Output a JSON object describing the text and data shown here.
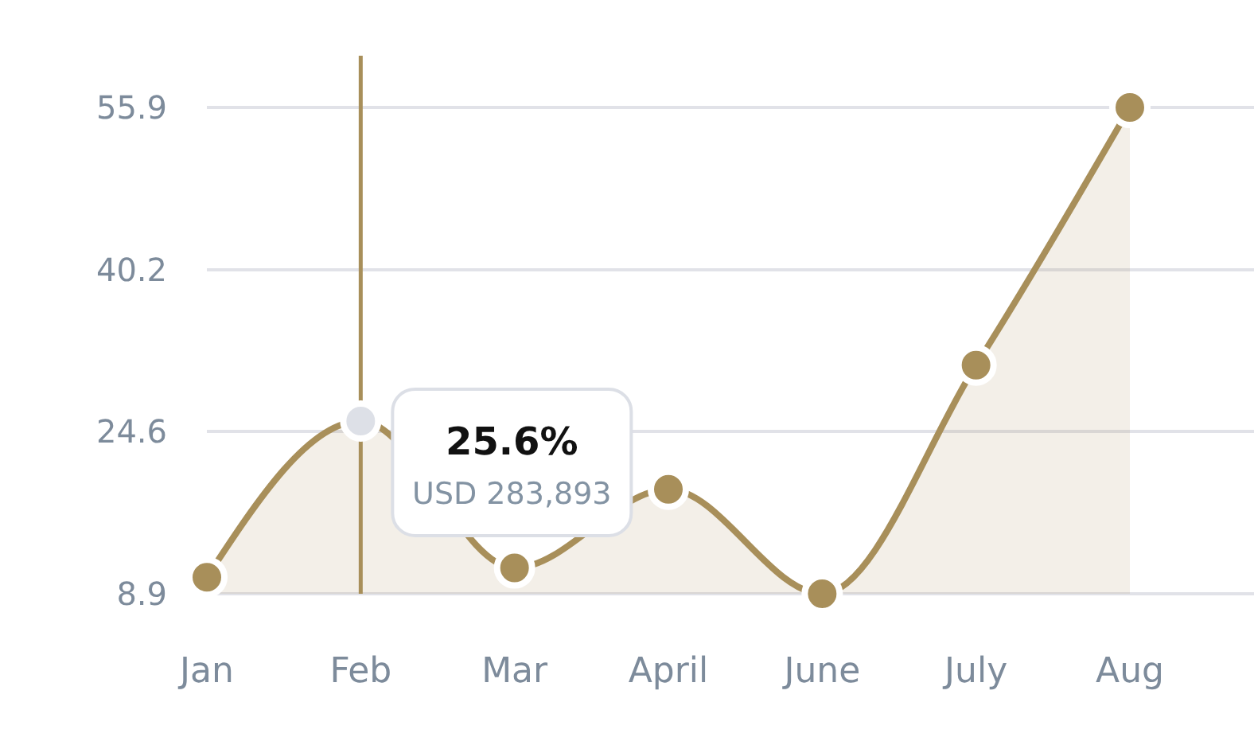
{
  "chart_data": {
    "type": "area",
    "categories": [
      "Jan",
      "Feb",
      "Mar",
      "April",
      "June",
      "July",
      "Aug"
    ],
    "series": [
      {
        "color": "#a88f5a",
        "colors": [
          "#a88f5a",
          "#dde0e7",
          "#a88f5a",
          "#a88f5a",
          "#a88f5a",
          "#a88f5a",
          "#a88f5a"
        ],
        "values": [
          10.5,
          25.6,
          11.4,
          19,
          8.9,
          31,
          55.9
        ]
      }
    ],
    "ylim": [
      8.9,
      55.9
    ],
    "yticks": [
      8.9,
      24.6,
      40.2,
      55.9
    ],
    "grid": "y",
    "marker": "circle",
    "line_style": "solid",
    "ref_lines": [
      {
        "axis": "x",
        "value": "Feb",
        "color": "#a88f5a"
      }
    ],
    "annotations": [
      {
        "text": "25.6%",
        "x": "Feb",
        "y": 25.6
      },
      "USD 283,893"
    ]
  }
}
